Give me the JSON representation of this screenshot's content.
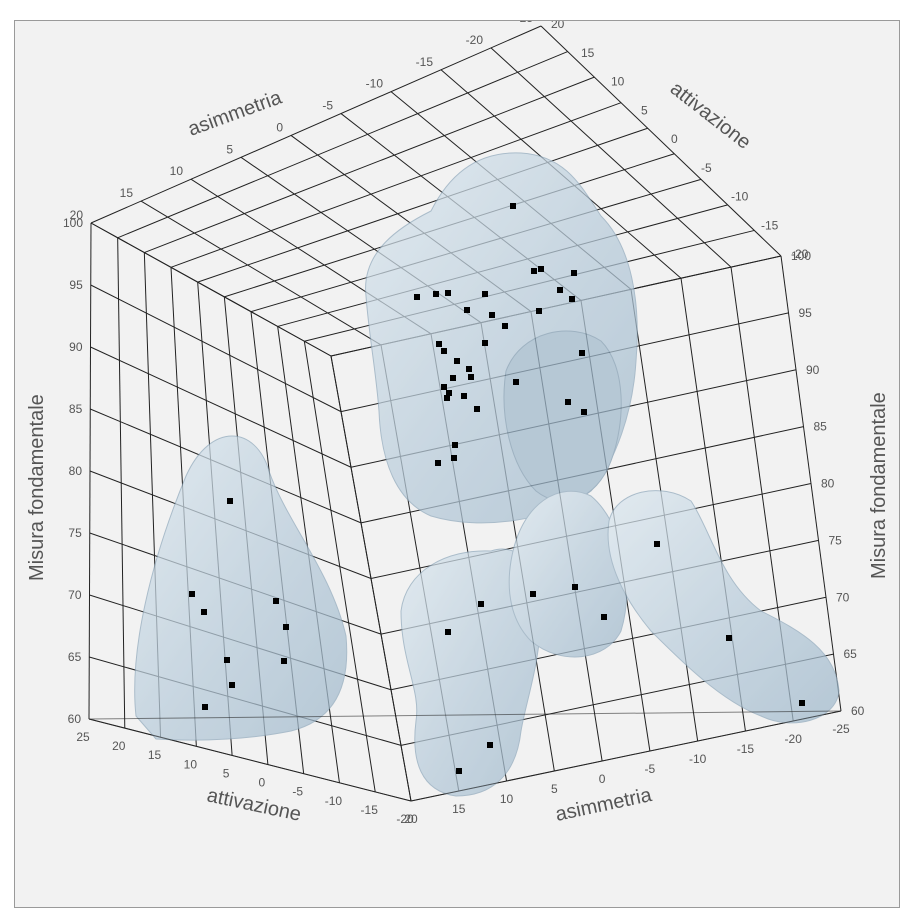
{
  "chart_data": {
    "type": "scatter",
    "subtype": "3d-scatter-with-density-surfaces",
    "axes": {
      "x": {
        "label": "attivazione",
        "ticks": [
          "25",
          "20",
          "15",
          "10",
          "5",
          "0",
          "-5",
          "-10",
          "-15",
          "-20"
        ],
        "range": [
          -20,
          25
        ]
      },
      "y": {
        "label": "asimmetria",
        "ticks": [
          "20",
          "15",
          "10",
          "5",
          "0",
          "-5",
          "-10",
          "-15",
          "-20",
          "-25"
        ],
        "range": [
          -25,
          20
        ]
      },
      "z": {
        "label": "Misura fondamentale",
        "ticks": [
          "60",
          "65",
          "70",
          "75",
          "80",
          "85",
          "90",
          "95",
          "100"
        ],
        "range": [
          60,
          100
        ]
      }
    },
    "back_axes": {
      "top_left": {
        "label": "asimmetria",
        "ticks": [
          "20",
          "15",
          "10",
          "5",
          "0",
          "-5",
          "-10",
          "-15",
          "-20",
          "-25"
        ]
      },
      "top_right": {
        "label": "attivazione",
        "ticks": [
          "20",
          "15",
          "10",
          "5",
          "0",
          "-5",
          "-10",
          "-15",
          "-20"
        ]
      },
      "left_z": {
        "label": "Misura fondamentale",
        "ticks": [
          "60",
          "65",
          "70",
          "75",
          "80",
          "85",
          "90",
          "95",
          "100"
        ]
      },
      "right_z": {
        "label": "Misura fondamentale",
        "ticks": [
          "60",
          "65",
          "70",
          "75",
          "80",
          "85",
          "90",
          "95",
          "100"
        ]
      }
    },
    "grid": true,
    "surface_color": "#a9c3d6",
    "point_color": "#000000"
  },
  "colors": {
    "background": "#f2f2f2",
    "grid": "#222222",
    "surface": "#a9c3d6",
    "points": "#000000"
  }
}
